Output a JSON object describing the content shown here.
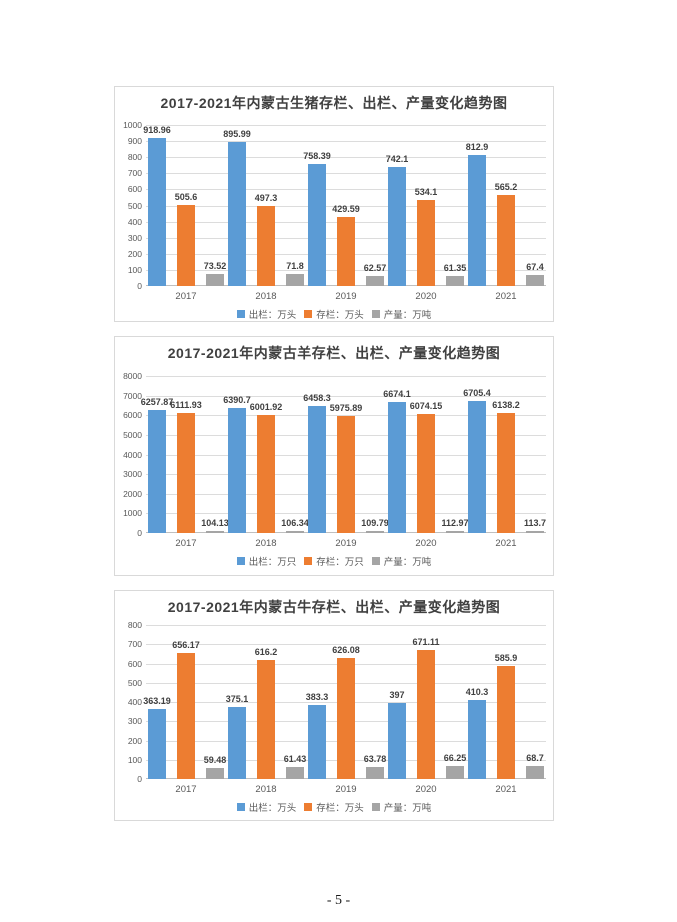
{
  "page": {
    "number_label": "- 5 -"
  },
  "style": {
    "bar_blue": "#5B9BD5",
    "bar_orange": "#ED7D31",
    "bar_gray": "#A5A5A5",
    "gridline_color": "#dcdcdc",
    "axis_color": "#bfbfbf",
    "title_color": "#404040",
    "tick_label_color": "#595959"
  },
  "chart_data": [
    {
      "type": "bar",
      "title": "2017-2021年内蒙古生猪存栏、出栏、产量变化趋势图",
      "categories": [
        "2017",
        "2018",
        "2019",
        "2020",
        "2021"
      ],
      "series": [
        {
          "name": "出栏：万头",
          "color": "#5B9BD5",
          "values": [
            918.96,
            895.99,
            758.39,
            742.1,
            812.9
          ]
        },
        {
          "name": "存栏：万头",
          "color": "#ED7D31",
          "values": [
            505.6,
            497.3,
            429.59,
            534.1,
            565.2
          ]
        },
        {
          "name": "产量：万吨",
          "color": "#A5A5A5",
          "values": [
            73.52,
            71.8,
            62.57,
            61.35,
            67.4
          ]
        }
      ],
      "ylim": [
        0,
        1000
      ],
      "ytick_step": 100,
      "grid": true,
      "legend_position": "bottom"
    },
    {
      "type": "bar",
      "title": "2017-2021年内蒙古羊存栏、出栏、产量变化趋势图",
      "categories": [
        "2017",
        "2018",
        "2019",
        "2020",
        "2021"
      ],
      "series": [
        {
          "name": "出栏：万只",
          "color": "#5B9BD5",
          "values": [
            6257.87,
            6390.7,
            6458.3,
            6674.1,
            6705.4
          ]
        },
        {
          "name": "存栏：万只",
          "color": "#ED7D31",
          "values": [
            6111.93,
            6001.92,
            5975.89,
            6074.15,
            6138.2
          ]
        },
        {
          "name": "产量：万吨",
          "color": "#A5A5A5",
          "values": [
            104.13,
            106.34,
            109.79,
            112.97,
            113.7
          ]
        }
      ],
      "ylim": [
        0,
        8000
      ],
      "ytick_step": 1000,
      "grid": true,
      "legend_position": "bottom"
    },
    {
      "type": "bar",
      "title": "2017-2021年内蒙古牛存栏、出栏、产量变化趋势图",
      "categories": [
        "2017",
        "2018",
        "2019",
        "2020",
        "2021"
      ],
      "series": [
        {
          "name": "出栏：万头",
          "color": "#5B9BD5",
          "values": [
            363.19,
            375.1,
            383.3,
            397,
            410.3
          ]
        },
        {
          "name": "存栏：万头",
          "color": "#ED7D31",
          "values": [
            656.17,
            616.2,
            626.08,
            671.11,
            585.9
          ]
        },
        {
          "name": "产量：万吨",
          "color": "#A5A5A5",
          "values": [
            59.48,
            61.43,
            63.78,
            66.25,
            68.7
          ]
        }
      ],
      "ylim": [
        0,
        800
      ],
      "ytick_step": 100,
      "grid": true,
      "legend_position": "bottom"
    }
  ]
}
